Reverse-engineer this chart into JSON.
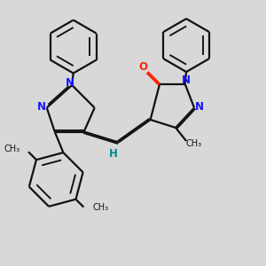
{
  "bg_color": "#d8d8d8",
  "bond_color": "#111111",
  "N_color": "#1515ff",
  "O_color": "#ff2000",
  "H_color": "#008888",
  "lw": 1.6,
  "dbo": 0.055,
  "figsize": [
    3.0,
    3.0
  ],
  "dpi": 100,
  "xlim": [
    0,
    10
  ],
  "ylim": [
    0,
    10
  ]
}
